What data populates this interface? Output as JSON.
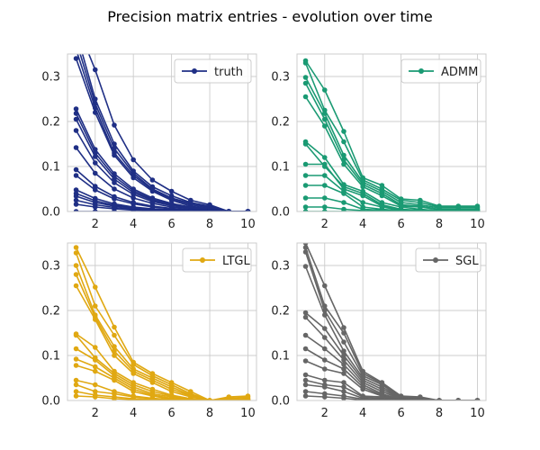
{
  "chart_data": {
    "type": "line",
    "title": "Precision matrix entries - evolution over time",
    "xlim": [
      0.55,
      10.45
    ],
    "ylim": [
      0.0,
      0.35
    ],
    "xticks": [
      2,
      4,
      6,
      8,
      10
    ],
    "yticks": [
      0.0,
      0.1,
      0.2,
      0.3
    ],
    "grid": true,
    "legend_position": "top-right",
    "panels": [
      {
        "name": "truth",
        "color": "#1f2f85",
        "series": [
          {
            "values": [
              0.42,
              0.315,
              0.192,
              0.115,
              0.07,
              0.045,
              0.025,
              0.015,
              0.0,
              0.0
            ]
          },
          {
            "values": [
              0.4,
              0.25,
              0.15,
              0.09,
              0.055,
              0.035,
              0.02,
              0.012,
              0.0,
              0.0
            ]
          },
          {
            "values": [
              0.38,
              0.24,
              0.14,
              0.085,
              0.05,
              0.03,
              0.018,
              0.01,
              0.0,
              0.0
            ]
          },
          {
            "values": [
              0.36,
              0.23,
              0.13,
              0.08,
              0.048,
              0.028,
              0.015,
              0.008,
              0.0,
              0.0
            ]
          },
          {
            "values": [
              0.34,
              0.22,
              0.125,
              0.075,
              0.045,
              0.025,
              0.012,
              0.006,
              0.0,
              0.0
            ]
          },
          {
            "values": [
              0.228,
              0.138,
              0.084,
              0.05,
              0.03,
              0.018,
              0.01,
              0.005,
              0.0,
              0.0
            ]
          },
          {
            "values": [
              0.218,
              0.13,
              0.078,
              0.046,
              0.027,
              0.016,
              0.009,
              0.004,
              0.0,
              0.0
            ]
          },
          {
            "values": [
              0.205,
              0.122,
              0.072,
              0.042,
              0.025,
              0.014,
              0.008,
              0.004,
              0.0,
              0.0
            ]
          },
          {
            "values": [
              0.18,
              0.108,
              0.064,
              0.038,
              0.022,
              0.013,
              0.007,
              0.003,
              0.0,
              0.0
            ]
          },
          {
            "values": [
              0.142,
              0.085,
              0.05,
              0.03,
              0.018,
              0.01,
              0.006,
              0.003,
              0.0,
              0.0
            ]
          },
          {
            "values": [
              0.093,
              0.056,
              0.033,
              0.02,
              0.012,
              0.007,
              0.004,
              0.002,
              0.0,
              0.0
            ]
          },
          {
            "values": [
              0.08,
              0.048,
              0.028,
              0.017,
              0.01,
              0.006,
              0.003,
              0.002,
              0.0,
              0.0
            ]
          },
          {
            "values": [
              0.048,
              0.029,
              0.017,
              0.01,
              0.006,
              0.004,
              0.002,
              0.001,
              0.0,
              0.0
            ]
          },
          {
            "values": [
              0.04,
              0.024,
              0.014,
              0.008,
              0.005,
              0.003,
              0.002,
              0.001,
              0.0,
              0.0
            ]
          },
          {
            "values": [
              0.034,
              0.02,
              0.012,
              0.007,
              0.004,
              0.003,
              0.001,
              0.001,
              0.0,
              0.0
            ]
          },
          {
            "values": [
              0.025,
              0.015,
              0.009,
              0.005,
              0.003,
              0.002,
              0.001,
              0.0,
              0.0,
              0.0
            ]
          },
          {
            "values": [
              0.016,
              0.01,
              0.006,
              0.003,
              0.002,
              0.001,
              0.001,
              0.0,
              0.0,
              0.0
            ]
          },
          {
            "values": [
              0.0,
              0.0,
              0.0,
              0.0,
              0.0,
              0.0,
              0.0,
              0.0,
              0.0,
              0.0
            ]
          }
        ]
      },
      {
        "name": "ADMM",
        "color": "#1a9a73",
        "series": [
          {
            "values": [
              0.335,
              0.27,
              0.178,
              0.075,
              0.058,
              0.028,
              0.025,
              0.012,
              0.012,
              0.012
            ]
          },
          {
            "values": [
              0.33,
              0.225,
              0.155,
              0.07,
              0.05,
              0.025,
              0.02,
              0.01,
              0.01,
              0.01
            ]
          },
          {
            "values": [
              0.298,
              0.218,
              0.125,
              0.065,
              0.045,
              0.02,
              0.015,
              0.008,
              0.008,
              0.008
            ]
          },
          {
            "values": [
              0.285,
              0.205,
              0.115,
              0.06,
              0.04,
              0.015,
              0.012,
              0.005,
              0.005,
              0.005
            ]
          },
          {
            "values": [
              0.255,
              0.19,
              0.105,
              0.055,
              0.035,
              0.012,
              0.01,
              0.004,
              0.004,
              0.004
            ]
          },
          {
            "values": [
              0.155,
              0.12,
              0.06,
              0.045,
              0.02,
              0.01,
              0.005,
              0.002,
              0.002,
              0.002
            ]
          },
          {
            "values": [
              0.15,
              0.1,
              0.055,
              0.04,
              0.015,
              0.005,
              0.003,
              0.001,
              0.001,
              0.001
            ]
          },
          {
            "values": [
              0.105,
              0.105,
              0.05,
              0.035,
              0.012,
              0.004,
              0.002,
              0.001,
              0.001,
              0.001
            ]
          },
          {
            "values": [
              0.08,
              0.08,
              0.045,
              0.02,
              0.01,
              0.003,
              0.001,
              0.0,
              0.0,
              0.0
            ]
          },
          {
            "values": [
              0.058,
              0.058,
              0.04,
              0.01,
              0.005,
              0.002,
              0.001,
              0.0,
              0.0,
              0.0
            ]
          },
          {
            "values": [
              0.03,
              0.03,
              0.02,
              0.005,
              0.003,
              0.001,
              0.0,
              0.0,
              0.0,
              0.0
            ]
          },
          {
            "values": [
              0.01,
              0.01,
              0.005,
              0.002,
              0.001,
              0.0,
              0.0,
              0.0,
              0.0,
              0.0
            ]
          },
          {
            "values": [
              0.0,
              0.0,
              0.0,
              0.0,
              0.0,
              0.0,
              0.0,
              0.0,
              0.0,
              0.0
            ]
          }
        ]
      },
      {
        "name": "LTGL",
        "color": "#e0a812",
        "series": [
          {
            "values": [
              0.34,
              0.252,
              0.163,
              0.085,
              0.06,
              0.04,
              0.02,
              0.0,
              0.008,
              0.01
            ]
          },
          {
            "values": [
              0.328,
              0.21,
              0.145,
              0.08,
              0.055,
              0.035,
              0.015,
              0.0,
              0.005,
              0.008
            ]
          },
          {
            "values": [
              0.3,
              0.19,
              0.12,
              0.07,
              0.05,
              0.03,
              0.012,
              0.0,
              0.003,
              0.005
            ]
          },
          {
            "values": [
              0.28,
              0.185,
              0.11,
              0.065,
              0.045,
              0.025,
              0.01,
              0.0,
              0.002,
              0.003
            ]
          },
          {
            "values": [
              0.255,
              0.18,
              0.1,
              0.06,
              0.04,
              0.02,
              0.008,
              0.0,
              0.001,
              0.002
            ]
          },
          {
            "values": [
              0.148,
              0.118,
              0.065,
              0.04,
              0.025,
              0.012,
              0.004,
              0.0,
              0.0,
              0.0
            ]
          },
          {
            "values": [
              0.145,
              0.095,
              0.06,
              0.035,
              0.02,
              0.01,
              0.003,
              0.0,
              0.0,
              0.0
            ]
          },
          {
            "values": [
              0.115,
              0.09,
              0.055,
              0.03,
              0.015,
              0.008,
              0.002,
              0.0,
              0.0,
              0.0
            ]
          },
          {
            "values": [
              0.092,
              0.075,
              0.05,
              0.025,
              0.012,
              0.005,
              0.001,
              0.0,
              0.0,
              0.0
            ]
          },
          {
            "values": [
              0.078,
              0.065,
              0.045,
              0.02,
              0.01,
              0.003,
              0.0,
              0.0,
              0.0,
              0.0
            ]
          },
          {
            "values": [
              0.045,
              0.035,
              0.02,
              0.01,
              0.005,
              0.002,
              0.0,
              0.0,
              0.0,
              0.0
            ]
          },
          {
            "values": [
              0.035,
              0.02,
              0.015,
              0.008,
              0.004,
              0.001,
              0.0,
              0.0,
              0.0,
              0.0
            ]
          },
          {
            "values": [
              0.02,
              0.012,
              0.008,
              0.004,
              0.002,
              0.0,
              0.0,
              0.0,
              0.0,
              0.0
            ]
          },
          {
            "values": [
              0.01,
              0.008,
              0.004,
              0.002,
              0.001,
              0.0,
              0.0,
              0.0,
              0.0,
              0.0
            ]
          }
        ]
      },
      {
        "name": "SGL",
        "color": "#666666",
        "series": [
          {
            "values": [
              0.35,
              0.255,
              0.162,
              0.065,
              0.04,
              0.01,
              0.008,
              0.0,
              0.0,
              0.0
            ]
          },
          {
            "values": [
              0.34,
              0.21,
              0.15,
              0.06,
              0.038,
              0.008,
              0.006,
              0.0,
              0.0,
              0.0
            ]
          },
          {
            "values": [
              0.33,
              0.2,
              0.13,
              0.055,
              0.035,
              0.006,
              0.005,
              0.0,
              0.0,
              0.0
            ]
          },
          {
            "values": [
              0.298,
              0.19,
              0.11,
              0.05,
              0.03,
              0.005,
              0.004,
              0.0,
              0.0,
              0.0
            ]
          },
          {
            "values": [
              0.195,
              0.16,
              0.1,
              0.045,
              0.025,
              0.004,
              0.003,
              0.0,
              0.0,
              0.0
            ]
          },
          {
            "values": [
              0.185,
              0.14,
              0.09,
              0.04,
              0.02,
              0.003,
              0.002,
              0.0,
              0.0,
              0.0
            ]
          },
          {
            "values": [
              0.145,
              0.115,
              0.08,
              0.035,
              0.015,
              0.002,
              0.001,
              0.0,
              0.0,
              0.0
            ]
          },
          {
            "values": [
              0.115,
              0.09,
              0.07,
              0.03,
              0.012,
              0.001,
              0.0,
              0.0,
              0.0,
              0.0
            ]
          },
          {
            "values": [
              0.088,
              0.07,
              0.06,
              0.025,
              0.01,
              0.001,
              0.0,
              0.0,
              0.0,
              0.0
            ]
          },
          {
            "values": [
              0.057,
              0.045,
              0.04,
              0.01,
              0.008,
              0.0,
              0.0,
              0.0,
              0.0,
              0.0
            ]
          },
          {
            "values": [
              0.045,
              0.035,
              0.03,
              0.008,
              0.005,
              0.0,
              0.0,
              0.0,
              0.0,
              0.0
            ]
          },
          {
            "values": [
              0.035,
              0.03,
              0.02,
              0.005,
              0.003,
              0.0,
              0.0,
              0.0,
              0.0,
              0.0
            ]
          },
          {
            "values": [
              0.02,
              0.015,
              0.01,
              0.003,
              0.001,
              0.0,
              0.0,
              0.0,
              0.0,
              0.0
            ]
          },
          {
            "values": [
              0.01,
              0.008,
              0.005,
              0.001,
              0.0,
              0.0,
              0.0,
              0.0,
              0.0,
              0.0
            ]
          }
        ]
      }
    ]
  }
}
